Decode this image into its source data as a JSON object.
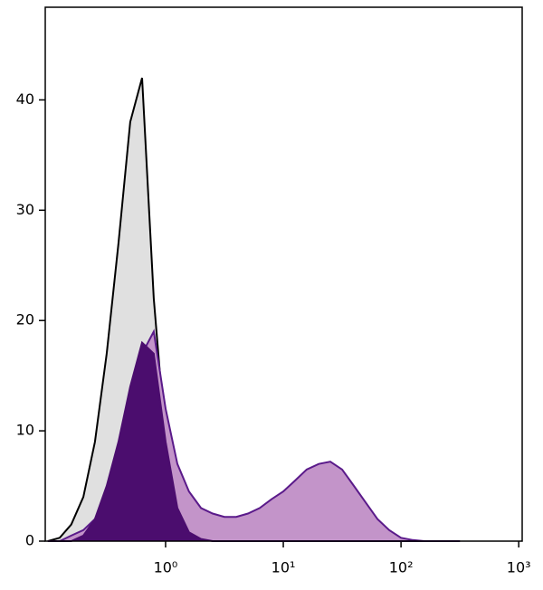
{
  "chart_data": {
    "type": "histogram",
    "x": [
      0.1,
      0.126,
      0.158,
      0.2,
      0.251,
      0.316,
      0.398,
      0.501,
      0.631,
      0.794,
      1,
      1.26,
      1.58,
      2,
      2.51,
      3.16,
      3.98,
      5.01,
      6.31,
      7.94,
      10,
      12.6,
      15.8,
      20,
      25.1,
      31.6,
      39.8,
      50.1,
      63.1,
      79.4,
      100,
      126,
      158,
      200,
      251,
      316
    ],
    "series": [
      {
        "color": "#000000",
        "fill": "#e0e0e0",
        "values": [
          0,
          0.3,
          1.5,
          4,
          9,
          17,
          27,
          38,
          42,
          22,
          9,
          4,
          1.5,
          0.5,
          0.2,
          0,
          0,
          0,
          0,
          0,
          0,
          0,
          0,
          0,
          0,
          0,
          0,
          0,
          0,
          0,
          0,
          0,
          0,
          0,
          0,
          0
        ]
      },
      {
        "color": "#5a1a8a",
        "fill": "#c394c9",
        "values": [
          0,
          0,
          0.5,
          1,
          2,
          4,
          8,
          13,
          17,
          19,
          12,
          7,
          4.5,
          3,
          2.5,
          2.2,
          2.2,
          2.5,
          3,
          3.8,
          4.5,
          5.5,
          6.5,
          7,
          7.2,
          6.5,
          5,
          3.5,
          2,
          1,
          0.3,
          0.1,
          0,
          0,
          0,
          0
        ]
      },
      {
        "color": "#4b0d6e",
        "fill": "#4b0d6e",
        "values": [
          0,
          0,
          0,
          0.5,
          2,
          5,
          9,
          14,
          18,
          17,
          9,
          3,
          0.8,
          0.2,
          0,
          0,
          0,
          0,
          0,
          0,
          0,
          0,
          0,
          0,
          0,
          0,
          0,
          0,
          0,
          0,
          0,
          0,
          0,
          0,
          0,
          0
        ]
      }
    ],
    "xscale": "log",
    "xlim": [
      0.095,
      1070
    ],
    "xticks": [
      {
        "value": 1,
        "label": "10⁰"
      },
      {
        "value": 10,
        "label": "10¹"
      },
      {
        "value": 100,
        "label": "10²"
      },
      {
        "value": 1000,
        "label": "10³"
      }
    ],
    "ylim": [
      0,
      48.4
    ],
    "yticks": [
      0,
      10,
      20,
      30,
      40
    ]
  }
}
